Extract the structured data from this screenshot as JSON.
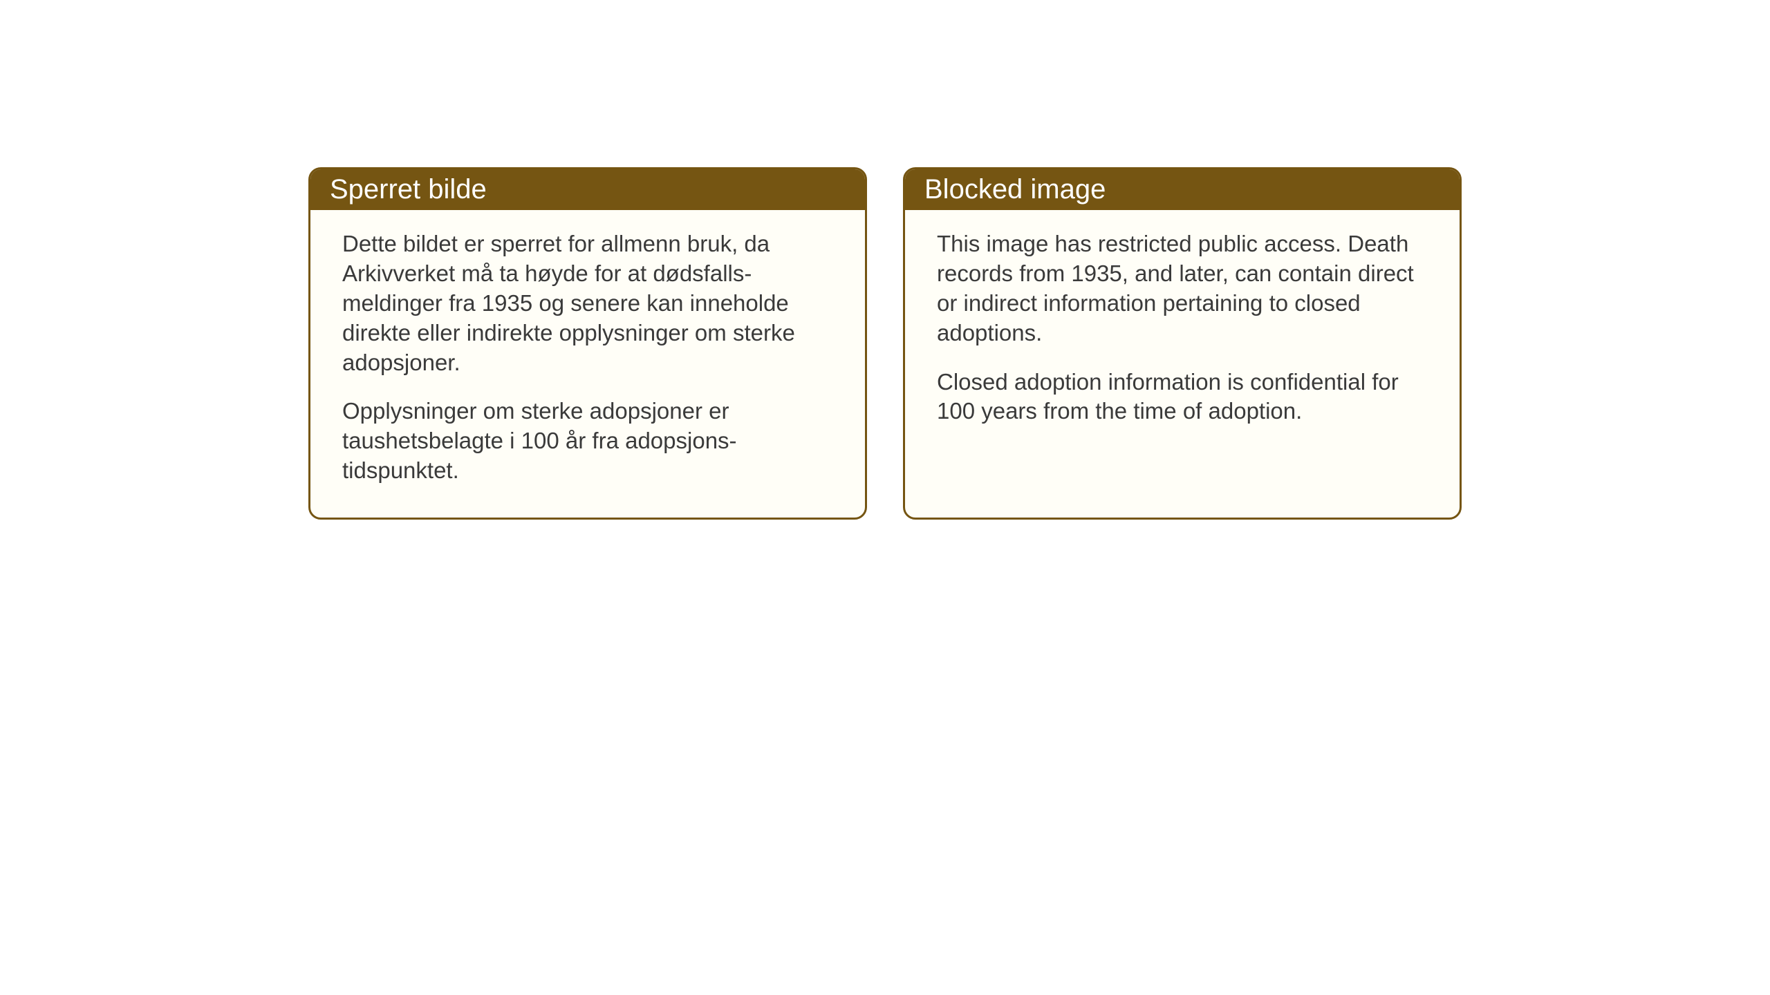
{
  "cards": {
    "left": {
      "title": "Sperret bilde",
      "paragraph1": "Dette bildet er sperret for allmenn bruk, da Arkivverket må ta høyde for at dødsfalls-meldinger fra 1935 og senere kan inneholde direkte eller indirekte opplysninger om sterke adopsjoner.",
      "paragraph2": "Opplysninger om sterke adopsjoner er taushetsbelagte i 100 år fra adopsjons-tidspunktet."
    },
    "right": {
      "title": "Blocked image",
      "paragraph1": "This image has restricted public access. Death records from 1935, and later, can contain direct or indirect information pertaining to closed adoptions.",
      "paragraph2": "Closed adoption information is confidential for 100 years from the time of adoption."
    }
  },
  "styling": {
    "card_border_color": "#755512",
    "card_header_bg": "#755512",
    "card_header_text_color": "#ffffff",
    "card_body_bg": "#fffef7",
    "card_body_text_color": "#3a3a3a",
    "page_bg": "#ffffff",
    "header_fontsize": 40,
    "body_fontsize": 33,
    "border_radius": 18,
    "border_width": 3
  }
}
